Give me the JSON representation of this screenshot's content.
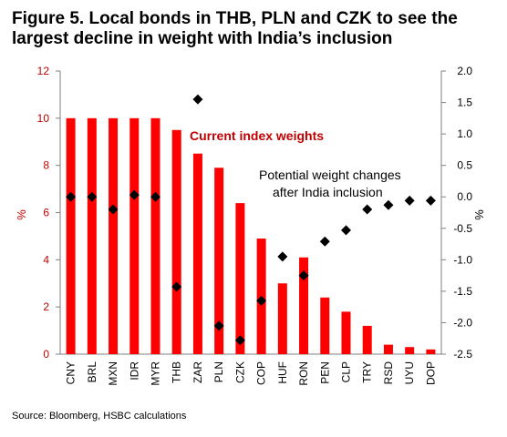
{
  "title": "Figure 5. Local bonds in THB, PLN and CZK to see the largest decline in weight with India’s inclusion",
  "source": "Source: Bloomberg, HSBC calculations",
  "chart_data": {
    "type": "bar",
    "categories": [
      "CNY",
      "BRL",
      "MXN",
      "IDR",
      "MYR",
      "THB",
      "ZAR",
      "PLN",
      "CZK",
      "COP",
      "HUF",
      "RON",
      "PEN",
      "CLP",
      "TRY",
      "RSD",
      "UYU",
      "DOP"
    ],
    "series": [
      {
        "name": "Current index weights",
        "type": "bar",
        "axis": "left",
        "color": "#ff0000",
        "values": [
          10.0,
          10.0,
          10.0,
          10.0,
          10.0,
          9.5,
          8.5,
          7.9,
          6.4,
          4.9,
          3.0,
          4.1,
          2.4,
          1.8,
          1.2,
          0.4,
          0.3,
          0.2
        ]
      },
      {
        "name": "Potential weight changes after India inclusion",
        "type": "scatter",
        "axis": "right",
        "color": "#000000",
        "values": [
          0.0,
          0.0,
          -0.2,
          0.03,
          0.0,
          -1.43,
          1.55,
          -2.05,
          -2.28,
          -1.65,
          -0.95,
          -1.25,
          -0.71,
          -0.53,
          -0.2,
          -0.13,
          -0.06,
          -0.06
        ]
      }
    ],
    "y_left": {
      "label": "%",
      "min": 0,
      "max": 12,
      "ticks": [
        "0",
        "2",
        "4",
        "6",
        "8",
        "10",
        "12"
      ],
      "color": "#c00000"
    },
    "y_right": {
      "label": "%",
      "min": -2.5,
      "max": 2.0,
      "ticks": [
        "-2.5",
        "-2.0",
        "-1.5",
        "-1.0",
        "-0.5",
        "0.0",
        "0.5",
        "1.0",
        "1.5",
        "2.0"
      ],
      "color": "#000000"
    },
    "legend_labels": {
      "bars": "Current index weights",
      "dots_line1": "Potential weight changes",
      "dots_line2": "after India inclusion"
    },
    "grid": false
  }
}
